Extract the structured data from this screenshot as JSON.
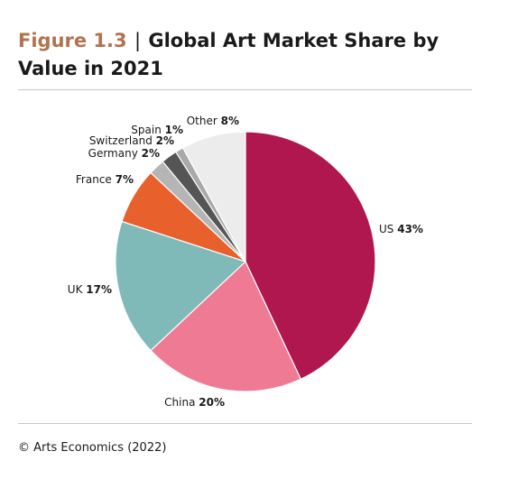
{
  "header": {
    "figure_label": "Figure 1.3",
    "separator": "|",
    "title": "Global Art Market Share by Value in 2021"
  },
  "source": "© Arts Economics (2022)",
  "chart_data": {
    "type": "pie",
    "title": "Global Art Market Share by Value in 2021",
    "slices": [
      {
        "label": "US",
        "value": 43,
        "display": "43%",
        "color": "#b0174f"
      },
      {
        "label": "China",
        "value": 20,
        "display": "20%",
        "color": "#ef7a93"
      },
      {
        "label": "UK",
        "value": 17,
        "display": "17%",
        "color": "#7fbab9"
      },
      {
        "label": "France",
        "value": 7,
        "display": "7%",
        "color": "#e8602b"
      },
      {
        "label": "Germany",
        "value": 2,
        "display": "2%",
        "color": "#b5b5b5"
      },
      {
        "label": "Switzerland",
        "value": 2,
        "display": "2%",
        "color": "#555555"
      },
      {
        "label": "Spain",
        "value": 1,
        "display": "1%",
        "color": "#a9a9a9"
      },
      {
        "label": "Other",
        "value": 8,
        "display": "8%",
        "color": "#ececec"
      }
    ],
    "legend": "none"
  }
}
